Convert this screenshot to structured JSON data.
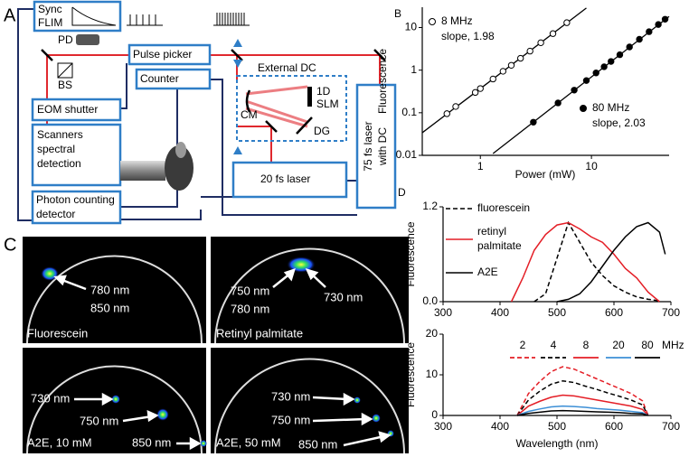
{
  "panel_a": {
    "label": "A",
    "sync_flim": [
      "Sync",
      "FLIM"
    ],
    "pd": "PD",
    "bs": "BS",
    "pulse_picker": "Pulse picker",
    "counter": "Counter",
    "external_dc": "External DC",
    "cm": "CM",
    "slm": [
      "1D",
      "SLM"
    ],
    "dg": "DG",
    "eom_shutter": "EOM shutter",
    "scanners": [
      "Scanners",
      "spectral",
      "detection"
    ],
    "photon_counting": [
      "Photon counting",
      "detector"
    ],
    "laser_20fs": "20 fs laser",
    "laser_75fs": [
      "75 fs laser",
      "with DC"
    ]
  },
  "panel_c": {
    "label": "C",
    "images": [
      {
        "caption": "Fluorescein",
        "annotations": [
          "780 nm",
          "850 nm"
        ]
      },
      {
        "caption": "Retinyl palmitate",
        "annotations": [
          "750 nm",
          "780 nm",
          "730 nm"
        ]
      },
      {
        "caption": "A2E, 10 mM",
        "annotations": [
          "730 nm",
          "750 nm",
          "850 nm"
        ]
      },
      {
        "caption": "A2E, 50 mM",
        "annotations": [
          "730 nm",
          "750 nm",
          "850 nm"
        ]
      }
    ]
  },
  "chart_data": [
    {
      "type": "scatter",
      "panel_label": "B",
      "xlabel": "Power (mW)",
      "ylabel": "Fluorescence",
      "xscale": "log",
      "yscale": "log",
      "xlim": [
        0.3,
        50
      ],
      "ylim": [
        0.01,
        30
      ],
      "xticks": [
        1,
        10
      ],
      "yticks": [
        0.01,
        0.1,
        1,
        10
      ],
      "series": [
        {
          "name": "8 MHz",
          "annotation": "slope, 1.98",
          "marker": "open",
          "color": "#000000",
          "x": [
            0.5,
            0.6,
            0.9,
            1.0,
            1.3,
            1.6,
            1.9,
            2.3,
            2.8,
            3.5,
            4.5,
            6
          ],
          "values": [
            0.095,
            0.14,
            0.3,
            0.37,
            0.62,
            0.94,
            1.3,
            1.9,
            2.8,
            4.4,
            7.2,
            13
          ],
          "fit": {
            "x": [
              0.3,
              9
            ],
            "values": [
              0.034,
              28.7
            ]
          }
        },
        {
          "name": "80 MHz",
          "annotation": "slope, 2.03",
          "marker": "filled",
          "color": "#000000",
          "x": [
            3,
            5,
            7,
            9,
            11,
            13,
            15,
            18,
            22,
            27,
            33,
            40,
            46
          ],
          "values": [
            0.06,
            0.17,
            0.34,
            0.57,
            0.86,
            1.2,
            1.6,
            2.3,
            3.5,
            5.3,
            8.0,
            11.8,
            15.7
          ],
          "fit": {
            "x": [
              1.3,
              50
            ],
            "values": [
              0.011,
              18.2
            ]
          }
        }
      ]
    },
    {
      "type": "line",
      "panel_label": "D",
      "ylabel": "Fluorescence",
      "xlim": [
        300,
        700
      ],
      "ylim": [
        0,
        1.2
      ],
      "xticks": [
        300,
        400,
        500,
        600,
        700
      ],
      "yticks": [
        {
          "value": 0,
          "label": "0.0"
        },
        1.2
      ],
      "x": [
        420,
        440,
        460,
        480,
        500,
        520,
        540,
        560,
        580,
        600,
        620,
        640,
        660,
        680,
        690
      ],
      "series": [
        {
          "name": "fluorescein",
          "color": "#000000",
          "dash": true,
          "values": [
            null,
            null,
            0,
            0.1,
            0.55,
            1.0,
            0.75,
            0.5,
            0.33,
            0.2,
            0.12,
            0.06,
            0.03,
            0.01,
            null
          ]
        },
        {
          "name": "retinyl palmitate",
          "color": "#e41e26",
          "dash": false,
          "values": [
            0,
            0.3,
            0.65,
            0.85,
            0.97,
            1.0,
            0.92,
            0.82,
            0.75,
            0.6,
            0.42,
            0.3,
            0.12,
            0,
            null
          ]
        },
        {
          "name": "A2E",
          "color": "#000000",
          "dash": false,
          "values": [
            null,
            null,
            null,
            null,
            0,
            0.03,
            0.1,
            0.25,
            0.45,
            0.65,
            0.82,
            0.95,
            1.0,
            0.88,
            0.6
          ]
        }
      ]
    },
    {
      "type": "line",
      "xlabel": "Wavelength (nm)",
      "ylabel": "Fluorescence",
      "legend_unit": "MHz",
      "xlim": [
        300,
        700
      ],
      "ylim": [
        0,
        20
      ],
      "xticks": [
        300,
        400,
        500,
        600,
        700
      ],
      "yticks": [
        0,
        10,
        20
      ],
      "x": [
        430,
        450,
        470,
        490,
        510,
        530,
        550,
        570,
        590,
        610,
        630,
        650,
        660
      ],
      "series": [
        {
          "name": "2",
          "color": "#e41e26",
          "dash": true,
          "values": [
            0,
            5.4,
            8.4,
            10.8,
            12,
            11.4,
            10.2,
            9,
            7.8,
            6.6,
            5.4,
            3.6,
            0
          ]
        },
        {
          "name": "4",
          "color": "#000000",
          "dash": true,
          "values": [
            0,
            3.8,
            6,
            7.7,
            8.5,
            8.1,
            7.2,
            6.4,
            5.5,
            4.7,
            3.8,
            2.6,
            0
          ]
        },
        {
          "name": "8",
          "color": "#e41e26",
          "dash": false,
          "values": [
            0,
            2.3,
            3.5,
            4.5,
            5,
            4.8,
            4.3,
            3.8,
            3.3,
            2.8,
            2.3,
            1.5,
            0
          ]
        },
        {
          "name": "20",
          "color": "#3c8fd6",
          "dash": false,
          "values": [
            0,
            1,
            1.6,
            2.1,
            2.3,
            2.2,
            2,
            1.7,
            1.5,
            1.3,
            1,
            0.7,
            0
          ]
        },
        {
          "name": "80",
          "color": "#000000",
          "dash": false,
          "values": [
            0,
            0.5,
            0.8,
            1.1,
            1.2,
            1.1,
            1,
            0.9,
            0.8,
            0.7,
            0.5,
            0.4,
            0
          ]
        }
      ]
    }
  ]
}
